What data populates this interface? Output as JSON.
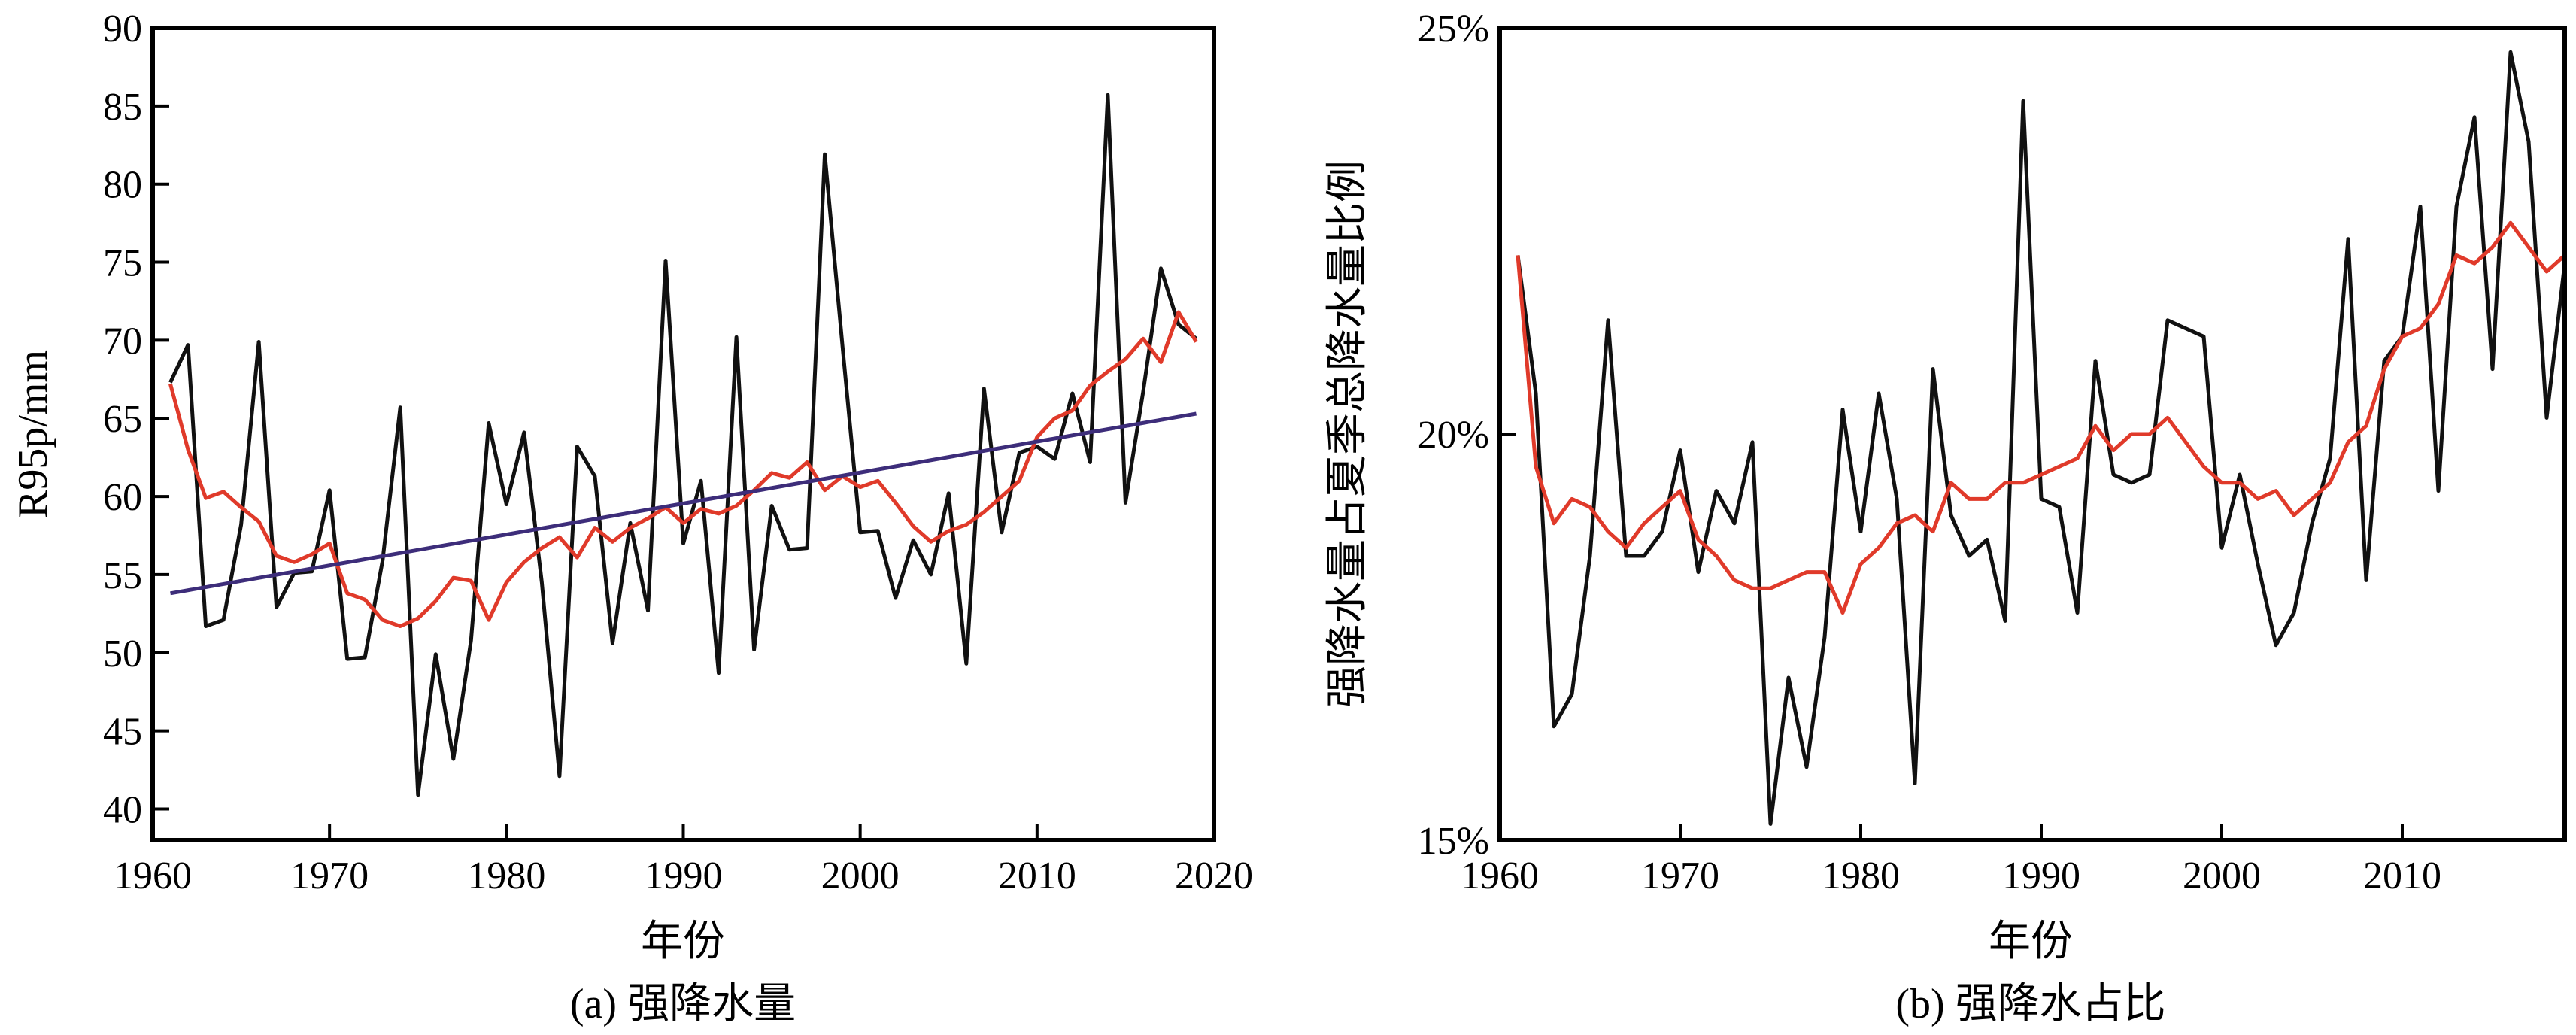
{
  "chart_data": [
    {
      "type": "line",
      "caption": "(a) 强降水量",
      "xlabel": "年份",
      "ylabel": "R95p/mm",
      "xlim": [
        1960,
        2020
      ],
      "ylim": [
        38,
        90
      ],
      "xticks": [
        1960,
        1970,
        1980,
        1990,
        2000,
        2010,
        2020
      ],
      "yticks": [
        40,
        45,
        50,
        55,
        60,
        65,
        70,
        75,
        80,
        85,
        90
      ],
      "ytick_labels": [
        "40",
        "45",
        "50",
        "55",
        "60",
        "65",
        "70",
        "75",
        "80",
        "85",
        "90"
      ],
      "legend": "none",
      "grid": false,
      "series": [
        {
          "color": "#111111",
          "x": [
            1961,
            1962,
            1963,
            1964,
            1965,
            1966,
            1967,
            1968,
            1969,
            1970,
            1971,
            1972,
            1973,
            1974,
            1975,
            1976,
            1977,
            1978,
            1979,
            1980,
            1981,
            1982,
            1983,
            1984,
            1985,
            1986,
            1987,
            1988,
            1989,
            1990,
            1991,
            1992,
            1993,
            1994,
            1995,
            1996,
            1997,
            1998,
            1999,
            2000,
            2001,
            2002,
            2003,
            2004,
            2005,
            2006,
            2007,
            2008,
            2009,
            2010,
            2011,
            2012,
            2013,
            2014,
            2015,
            2016,
            2017,
            2018,
            2019
          ],
          "y": [
            67.3,
            69.7,
            51.7,
            52.1,
            58.2,
            69.9,
            52.9,
            55.1,
            55.2,
            60.4,
            49.6,
            49.7,
            55.9,
            65.7,
            40.9,
            49.9,
            43.2,
            50.8,
            64.7,
            59.5,
            64.1,
            54.5,
            42.1,
            63.2,
            61.3,
            50.6,
            58.3,
            52.7,
            75.1,
            57.0,
            61.0,
            48.7,
            70.2,
            50.2,
            59.4,
            56.6,
            56.7,
            81.9,
            69.6,
            57.7,
            57.8,
            53.5,
            57.2,
            55.0,
            60.2,
            49.3,
            66.9,
            57.7,
            62.8,
            63.2,
            62.4,
            66.6,
            62.2,
            85.7,
            59.6,
            66.7,
            74.6,
            71.0,
            70.1
          ]
        },
        {
          "color": "#e03a2a",
          "x": [
            1961,
            1962,
            1963,
            1964,
            1965,
            1966,
            1967,
            1968,
            1969,
            1970,
            1971,
            1972,
            1973,
            1974,
            1975,
            1976,
            1977,
            1978,
            1979,
            1980,
            1981,
            1982,
            1983,
            1984,
            1985,
            1986,
            1987,
            1988,
            1989,
            1990,
            1991,
            1992,
            1993,
            1994,
            1995,
            1996,
            1997,
            1998,
            1999,
            2000,
            2001,
            2002,
            2003,
            2004,
            2005,
            2006,
            2007,
            2008,
            2009,
            2010,
            2011,
            2012,
            2013,
            2014,
            2015,
            2016,
            2017,
            2018,
            2019
          ],
          "y": [
            67.2,
            63.0,
            59.9,
            60.3,
            59.3,
            58.4,
            56.2,
            55.8,
            56.3,
            57.0,
            53.8,
            53.4,
            52.1,
            51.7,
            52.2,
            53.3,
            54.8,
            54.6,
            52.1,
            54.5,
            55.8,
            56.7,
            57.4,
            56.1,
            58.0,
            57.1,
            58.0,
            58.6,
            59.3,
            58.3,
            59.2,
            58.9,
            59.4,
            60.4,
            61.5,
            61.2,
            62.2,
            60.4,
            61.3,
            60.6,
            61.0,
            59.6,
            58.1,
            57.1,
            57.8,
            58.2,
            59.0,
            60.0,
            61.0,
            63.8,
            65.0,
            65.5,
            67.1,
            68.0,
            68.8,
            70.1,
            68.6,
            71.8,
            69.9
          ]
        },
        {
          "color": "#3d2d7a",
          "x": [
            1961,
            2019
          ],
          "y": [
            53.8,
            65.3
          ]
        }
      ]
    },
    {
      "type": "line",
      "caption": "(b) 强降水占比",
      "xlabel": "年份",
      "ylabel": "强降水量占夏季总降水量比例",
      "xlim": [
        1960,
        2019
      ],
      "ylim": [
        15,
        25
      ],
      "xticks": [
        1960,
        1970,
        1980,
        1990,
        2000,
        2010
      ],
      "yticks": [
        15,
        20,
        25
      ],
      "ytick_labels": [
        "15%",
        "20%",
        "25%"
      ],
      "legend": "none",
      "grid": false,
      "series": [
        {
          "color": "#111111",
          "x": [
            1961,
            1962,
            1963,
            1964,
            1965,
            1966,
            1967,
            1968,
            1969,
            1970,
            1971,
            1972,
            1973,
            1974,
            1975,
            1976,
            1977,
            1978,
            1979,
            1980,
            1981,
            1982,
            1983,
            1984,
            1985,
            1986,
            1987,
            1988,
            1989,
            1990,
            1991,
            1992,
            1993,
            1994,
            1995,
            1996,
            1997,
            1998,
            1999,
            2000,
            2001,
            2002,
            2003,
            2004,
            2005,
            2006,
            2007,
            2008,
            2009,
            2010,
            2011,
            2012,
            2013,
            2014,
            2015,
            2016,
            2017,
            2018,
            2019
          ],
          "y": [
            22.2,
            20.5,
            16.4,
            16.8,
            18.5,
            21.4,
            18.5,
            18.5,
            18.8,
            19.8,
            18.3,
            19.3,
            18.9,
            19.9,
            15.2,
            17.0,
            15.9,
            17.5,
            20.3,
            18.8,
            20.5,
            19.2,
            15.7,
            20.8,
            19.0,
            18.5,
            18.7,
            17.7,
            24.1,
            19.2,
            19.1,
            17.8,
            20.9,
            19.5,
            19.4,
            19.5,
            21.4,
            21.3,
            21.2,
            18.6,
            19.5,
            18.4,
            17.4,
            17.8,
            18.9,
            19.7,
            22.4,
            18.2,
            20.9,
            21.2,
            22.8,
            19.3,
            22.8,
            23.9,
            20.8,
            24.7,
            23.6,
            20.2,
            22.1
          ]
        },
        {
          "color": "#e03a2a",
          "x": [
            1961,
            1962,
            1963,
            1964,
            1965,
            1966,
            1967,
            1968,
            1969,
            1970,
            1971,
            1972,
            1973,
            1974,
            1975,
            1976,
            1977,
            1978,
            1979,
            1980,
            1981,
            1982,
            1983,
            1984,
            1985,
            1986,
            1987,
            1988,
            1989,
            1990,
            1991,
            1992,
            1993,
            1994,
            1995,
            1996,
            1997,
            1998,
            1999,
            2000,
            2001,
            2002,
            2003,
            2004,
            2005,
            2006,
            2007,
            2008,
            2009,
            2010,
            2011,
            2012,
            2013,
            2014,
            2015,
            2016,
            2017,
            2018,
            2019
          ],
          "y": [
            22.2,
            19.6,
            18.9,
            19.2,
            19.1,
            18.8,
            18.6,
            18.9,
            19.1,
            19.3,
            18.7,
            18.5,
            18.2,
            18.1,
            18.1,
            18.2,
            18.3,
            18.3,
            17.8,
            18.4,
            18.6,
            18.9,
            19.0,
            18.8,
            19.4,
            19.2,
            19.2,
            19.4,
            19.4,
            19.5,
            19.6,
            19.7,
            20.1,
            19.8,
            20.0,
            20.0,
            20.2,
            19.9,
            19.6,
            19.4,
            19.4,
            19.2,
            19.3,
            19.0,
            19.2,
            19.4,
            19.9,
            20.1,
            20.8,
            21.2,
            21.3,
            21.6,
            22.2,
            22.1,
            22.3,
            22.6,
            22.3,
            22.0,
            22.2
          ]
        }
      ]
    }
  ]
}
